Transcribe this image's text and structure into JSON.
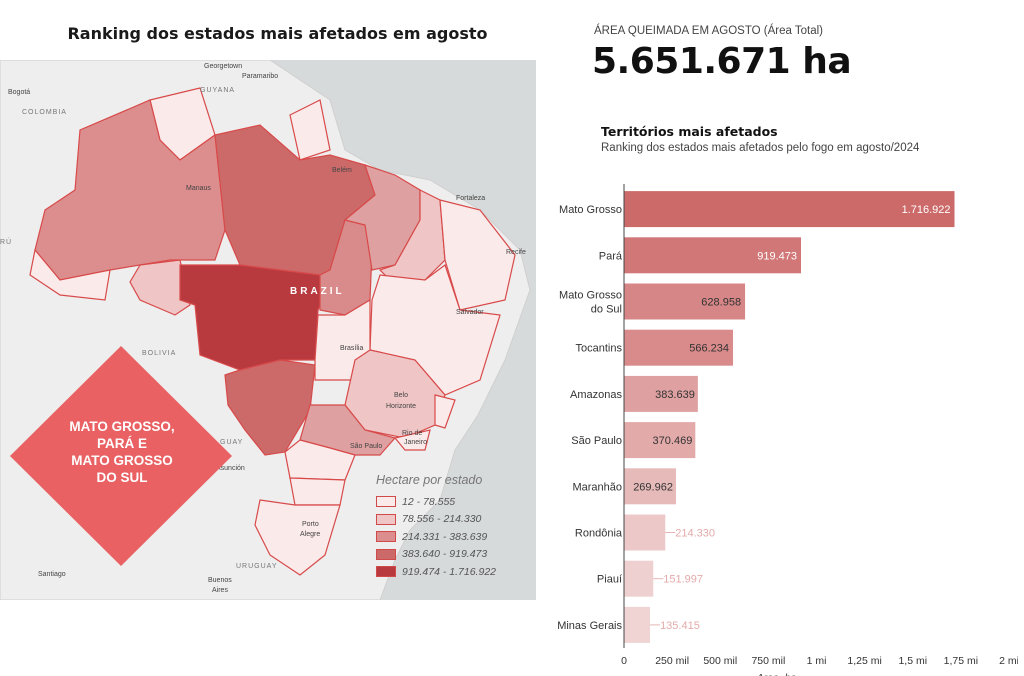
{
  "left_panel": {
    "title": "Ranking dos estados mais afetados em agosto",
    "callout": "MATO GROSSO,\nPARÁ E\nMATO GROSSO\nDO SUL",
    "map": {
      "country_label": "BRAZIL",
      "places": [
        {
          "id": "georgetown",
          "text": "Georgetown"
        },
        {
          "id": "paramaribo",
          "text": "Paramaribo"
        },
        {
          "id": "guyana",
          "text": "GUYANA"
        },
        {
          "id": "bogota",
          "text": "Bogotá"
        },
        {
          "id": "colombia",
          "text": "COLOMBIA"
        },
        {
          "id": "manaus",
          "text": "Manaus"
        },
        {
          "id": "belem",
          "text": "Belém"
        },
        {
          "id": "fortaleza",
          "text": "Fortaleza"
        },
        {
          "id": "recife",
          "text": "Recife"
        },
        {
          "id": "salvador",
          "text": "Salvador"
        },
        {
          "id": "brasilia",
          "text": "Brasília"
        },
        {
          "id": "bolivia",
          "text": "BOLIVIA"
        },
        {
          "id": "belo-horizonte-1",
          "text": "Belo"
        },
        {
          "id": "belo-horizonte-2",
          "text": "Horizonte"
        },
        {
          "id": "rio",
          "text": "Rio de"
        },
        {
          "id": "janeiro",
          "text": "Janeiro"
        },
        {
          "id": "sao-paulo",
          "text": "São Paulo"
        },
        {
          "id": "paraguay",
          "text": "GUAY"
        },
        {
          "id": "asuncion",
          "text": "Asunción"
        },
        {
          "id": "porto-alegre-1",
          "text": "Porto"
        },
        {
          "id": "porto-alegre-2",
          "text": "Alegre"
        },
        {
          "id": "uruguay",
          "text": "URUGUAY"
        },
        {
          "id": "santiago",
          "text": "Santiago"
        },
        {
          "id": "buenos-aires-1",
          "text": "Buenos"
        },
        {
          "id": "buenos-aires-2",
          "text": "Aires"
        },
        {
          "id": "peru-frag",
          "text": "RÚ"
        }
      ]
    },
    "legend": {
      "title": "Hectare por estado",
      "items": [
        {
          "label": "12 - 78.555",
          "color": "#fbeaea"
        },
        {
          "label": "78.556 - 214.330",
          "color": "#efc5c5"
        },
        {
          "label": "214.331 - 383.639",
          "color": "#dc8e8e"
        },
        {
          "label": "383.640 - 919.473",
          "color": "#cc6a6a"
        },
        {
          "label": "919.474 - 1.716.922",
          "color": "#b83a3f"
        }
      ]
    }
  },
  "kpi": {
    "label": "ÁREA QUEIMADA EM AGOSTO (Área Total)",
    "value": "5.651.671 ha"
  },
  "chart_heading": {
    "title": "Territórios mais afetados",
    "subtitle": "Ranking dos estados mais afetados pelo fogo em agosto/2024"
  },
  "chart_data": {
    "type": "bar",
    "orientation": "horizontal",
    "categories": [
      "Mato Grosso",
      "Pará",
      "Mato Grosso do Sul",
      "Tocantins",
      "Amazonas",
      "São Paulo",
      "Maranhão",
      "Rondônia",
      "Piauí",
      "Minas Gerais"
    ],
    "category_lines": [
      [
        "Mato Grosso"
      ],
      [
        "Pará"
      ],
      [
        "Mato Grosso",
        "do Sul"
      ],
      [
        "Tocantins"
      ],
      [
        "Amazonas"
      ],
      [
        "São Paulo"
      ],
      [
        "Maranhão"
      ],
      [
        "Rondônia"
      ],
      [
        "Piauí"
      ],
      [
        "Minas Gerais"
      ]
    ],
    "values": [
      1716922,
      919473,
      628958,
      566234,
      383639,
      370469,
      269962,
      214330,
      151997,
      135415
    ],
    "value_labels": [
      "1.716.922",
      "919.473",
      "628.958",
      "566.234",
      "383.639",
      "370.469",
      "269.962",
      "214.330",
      "151.997",
      "135.415"
    ],
    "bar_colors": [
      "#cc6a6a",
      "#d27777",
      "#d68686",
      "#d98b8b",
      "#dea0a0",
      "#e3aaaa",
      "#e7baba",
      "#ecc8c8",
      "#efd0d0",
      "#f0d3d3"
    ],
    "xlabel": "Area_ha",
    "ylabel": "",
    "xlim": [
      0,
      2000000
    ],
    "xticks": [
      0,
      250000,
      500000,
      750000,
      1000000,
      1250000,
      1500000,
      1750000,
      2000000
    ],
    "xtick_labels": [
      "0",
      "250 mil",
      "500 mil",
      "750 mil",
      "1 mi",
      "1,25 mi",
      "1,5 mi",
      "1,75 mi",
      "2 mi"
    ],
    "grid": false
  }
}
